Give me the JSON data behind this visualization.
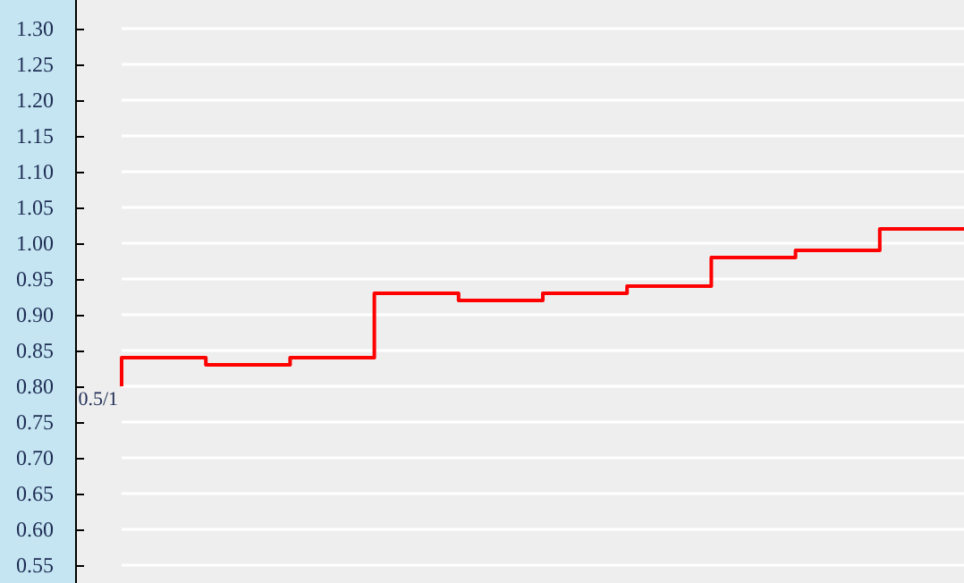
{
  "chart_data": {
    "type": "step",
    "categories": [
      null,
      null,
      null,
      null,
      null,
      null,
      null,
      null,
      null,
      null,
      null
    ],
    "series": [
      {
        "color": "#ff0000",
        "values": [
          0.8,
          0.84,
          0.83,
          0.84,
          0.93,
          0.92,
          0.93,
          0.94,
          0.98,
          0.99,
          1.02
        ]
      }
    ],
    "ylim": [
      0.525,
      1.34
    ],
    "yticks": [
      0.55,
      {
        "value": 0.6,
        "label": "0.60"
      },
      0.65,
      {
        "value": 0.7,
        "label": "0.70"
      },
      0.75,
      {
        "value": 0.8,
        "label": "0.80"
      },
      0.85,
      {
        "value": 0.9,
        "label": "0.90"
      },
      0.95,
      {
        "value": 1,
        "label": "1.00"
      },
      1.05,
      {
        "value": 1.1,
        "label": "1.10"
      },
      1.15,
      {
        "value": 1.2,
        "label": "1.20"
      },
      1.25,
      {
        "value": 1.3,
        "label": "1.30"
      }
    ],
    "tick_labels": "y",
    "grid": "y",
    "marker": "none",
    "line_style": "solid",
    "annotations": [
      "0.5/1"
    ]
  }
}
